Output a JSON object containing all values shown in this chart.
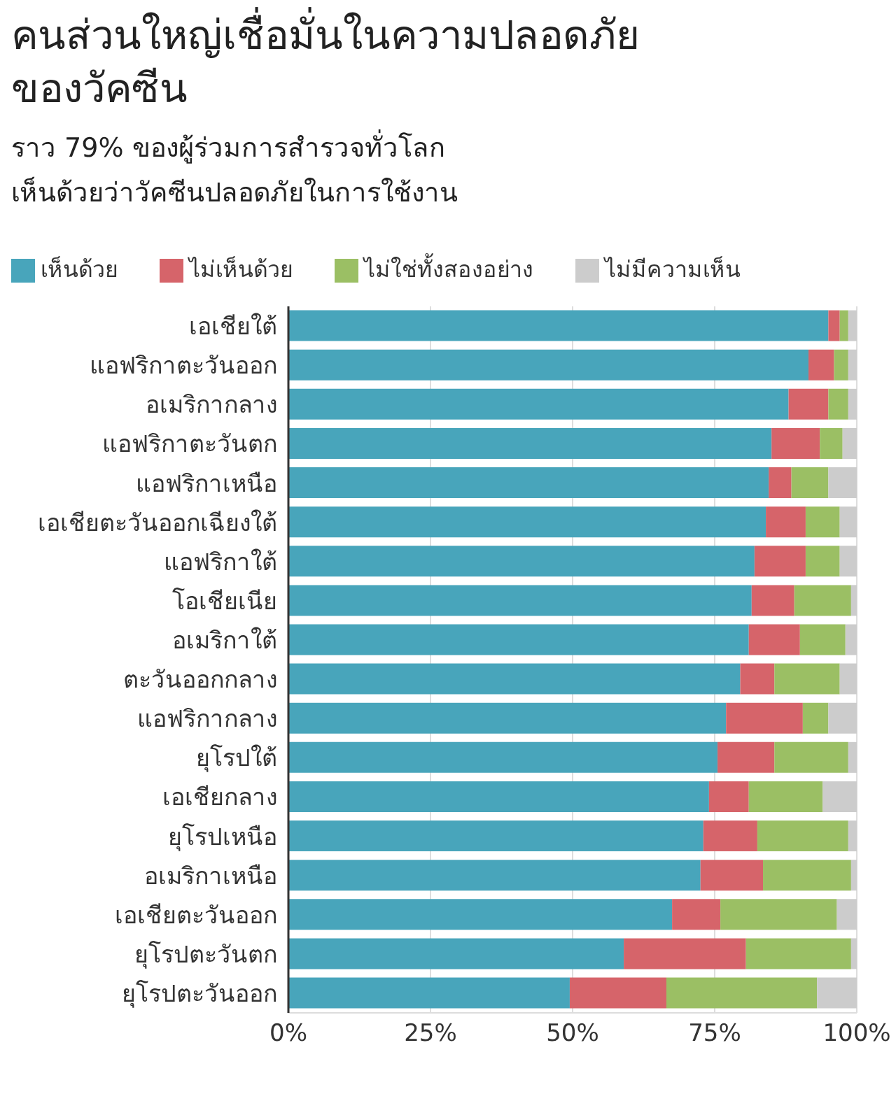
{
  "chart_data": {
    "type": "bar",
    "orientation": "horizontal",
    "stacked": true,
    "title": "คนส่วนใหญ่เชื่อมั่นในความปลอดภัย\nของวัคซีน",
    "subtitle": "ราว 79% ของผู้ร่วมการสำรวจทั่วโลก\nเห็นด้วยว่าวัคซีนปลอดภัยในการใช้งาน",
    "categories": [
      "เอเชียใต้",
      "แอฟริกาตะวันออก",
      "อเมริกากลาง",
      "แอฟริกาตะวันตก",
      "แอฟริกาเหนือ",
      "เอเชียตะวันออกเฉียงใต้",
      "แอฟริกาใต้",
      "โอเชียเนีย",
      "อเมริกาใต้",
      "ตะวันออกกลาง",
      "แอฟริกากลาง",
      "ยุโรปใต้",
      "เอเชียกลาง",
      "ยุโรปเหนือ",
      "อเมริกาเหนือ",
      "เอเชียตะวันออก",
      "ยุโรปตะวันตก",
      "ยุโรปตะวันออก"
    ],
    "series": [
      {
        "name": "เห็นด้วย",
        "color": "#48a5bb",
        "values": [
          95,
          91.5,
          88,
          85,
          84.5,
          84,
          82,
          81.5,
          81,
          79.5,
          77,
          75.5,
          74,
          73,
          72.5,
          67.5,
          59,
          49.5
        ]
      },
      {
        "name": "ไม่เห็นด้วย",
        "color": "#d6646a",
        "values": [
          2,
          4.5,
          7,
          8.5,
          4,
          7,
          9,
          7.5,
          9,
          6,
          13.5,
          10,
          7,
          9.5,
          11,
          8.5,
          21.5,
          17
        ]
      },
      {
        "name": "ไม่ใช่ทั้งสองอย่าง",
        "color": "#9bbf64",
        "values": [
          1.5,
          2.5,
          3.5,
          4,
          6.5,
          6,
          6,
          10,
          8,
          11.5,
          4.5,
          13,
          13,
          16,
          15.5,
          20.5,
          18.5,
          26.5
        ]
      },
      {
        "name": "ไม่มีความเห็น",
        "color": "#cccccc",
        "values": [
          1.5,
          1.5,
          1.5,
          2.5,
          5,
          3,
          3,
          1,
          2,
          3,
          5,
          1.5,
          6,
          1.5,
          1,
          3.5,
          1,
          7
        ]
      }
    ],
    "xlim": [
      0,
      100
    ],
    "xticks": [
      {
        "value": 0,
        "label": "0%"
      },
      {
        "value": 25,
        "label": "25%"
      },
      {
        "value": 50,
        "label": "50%"
      },
      {
        "value": 75,
        "label": "75%"
      },
      {
        "value": 100,
        "label": "100%"
      }
    ],
    "grid": "x",
    "legend": "top left"
  }
}
